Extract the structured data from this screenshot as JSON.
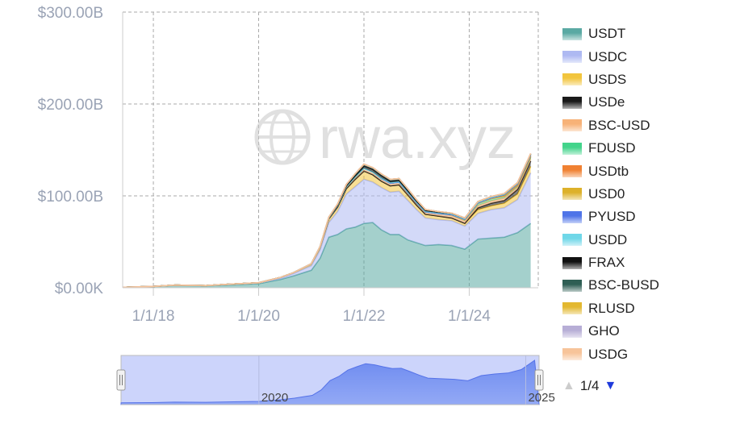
{
  "chart_data": {
    "type": "area",
    "stacked": true,
    "watermark": "rwa.xyz",
    "x_ticks": [
      "1/1/18",
      "1/1/20",
      "1/1/22",
      "1/1/24"
    ],
    "y_ticks": [
      "$0.00K",
      "$100.00B",
      "$200.00B",
      "$300.00B"
    ],
    "ylim": [
      0,
      300
    ],
    "xlim": [
      "2017-06",
      "2025-04"
    ],
    "grid": true,
    "legend_position": "right",
    "x": [
      "2017-06",
      "2018-01",
      "2018-06",
      "2019-01",
      "2019-06",
      "2020-01",
      "2020-06",
      "2020-09",
      "2021-01",
      "2021-03",
      "2021-05",
      "2021-07",
      "2021-09",
      "2021-11",
      "2022-01",
      "2022-03",
      "2022-05",
      "2022-07",
      "2022-09",
      "2022-11",
      "2023-01",
      "2023-03",
      "2023-06",
      "2023-09",
      "2023-12",
      "2024-03",
      "2024-06",
      "2024-09",
      "2024-12",
      "2025-03"
    ],
    "series": [
      {
        "name": "USDT",
        "color": "#5aa9a3",
        "values": [
          0.5,
          1.5,
          2.5,
          2,
          3,
          4.5,
          9,
          13,
          19,
          32,
          55,
          58,
          64,
          66,
          70,
          71,
          63,
          58,
          58,
          52,
          49,
          46,
          47,
          46,
          42,
          53,
          54,
          55,
          60,
          70
        ]
      },
      {
        "name": "USDC",
        "color": "#aeb9f2",
        "values": [
          0,
          0,
          0.3,
          0.3,
          0.5,
          0.6,
          1.5,
          2.5,
          5,
          9,
          16,
          25,
          38,
          44,
          48,
          44,
          46,
          46,
          47,
          43,
          36,
          30,
          27,
          27,
          25,
          28,
          31,
          32,
          36,
          55
        ]
      },
      {
        "name": "USDS",
        "color": "#f2c53d",
        "values": [
          0,
          0,
          0.1,
          0.1,
          0.3,
          0.3,
          0.8,
          1,
          2,
          3,
          4,
          5,
          6,
          8,
          9,
          8,
          7,
          7,
          7,
          6,
          5,
          4,
          4,
          3,
          3,
          4,
          4,
          5,
          6,
          7
        ]
      },
      {
        "name": "USDe",
        "color": "#1a1a1a",
        "values": [
          0,
          0,
          0,
          0,
          0,
          0,
          0,
          0,
          0,
          0,
          0,
          0,
          0,
          0,
          0,
          0,
          0,
          0,
          0,
          0,
          0,
          0,
          0,
          0,
          0.2,
          2,
          3,
          3,
          5,
          6
        ]
      },
      {
        "name": "BSC-USD",
        "color": "#f7b278",
        "values": [
          0,
          0,
          0,
          0,
          0,
          0,
          0,
          0,
          0,
          0.5,
          1,
          1.5,
          2,
          2.5,
          3,
          3,
          2.8,
          2.8,
          2.8,
          2.6,
          2.5,
          2.5,
          2.5,
          2.5,
          2.5,
          2.5,
          2.5,
          2.5,
          2.5,
          2.5
        ]
      },
      {
        "name": "FDUSD",
        "color": "#43d48b",
        "values": [
          0,
          0,
          0,
          0,
          0,
          0,
          0,
          0,
          0,
          0,
          0,
          0,
          0,
          0,
          0,
          0,
          0,
          0,
          0,
          0,
          0,
          0,
          0.2,
          0.8,
          1.5,
          2.5,
          2.5,
          2.2,
          1.8,
          1.5
        ]
      },
      {
        "name": "USDtb",
        "color": "#f08132",
        "values": [
          0,
          0,
          0,
          0,
          0,
          0,
          0,
          0,
          0,
          0,
          0,
          0,
          0,
          0,
          0,
          0,
          0,
          0,
          0,
          0,
          0,
          0,
          0,
          0,
          0,
          0,
          0,
          0,
          0.2,
          1
        ]
      },
      {
        "name": "USD0",
        "color": "#ddb12a",
        "values": [
          0,
          0,
          0,
          0,
          0,
          0,
          0,
          0,
          0,
          0,
          0,
          0,
          0,
          0,
          0,
          0,
          0,
          0,
          0,
          0,
          0,
          0,
          0,
          0,
          0,
          0,
          0.3,
          0.7,
          1,
          1
        ]
      },
      {
        "name": "PYUSD",
        "color": "#4f74e8",
        "values": [
          0,
          0,
          0,
          0,
          0,
          0,
          0,
          0,
          0,
          0,
          0,
          0,
          0,
          0,
          0,
          0,
          0,
          0,
          0,
          0,
          0,
          0,
          0,
          0.2,
          0.3,
          0.4,
          0.5,
          0.7,
          0.5,
          0.5
        ]
      },
      {
        "name": "USDD",
        "color": "#6fd7e8",
        "values": [
          0,
          0,
          0,
          0,
          0,
          0,
          0,
          0,
          0,
          0,
          0,
          0,
          0,
          0,
          0,
          0,
          0.5,
          0.7,
          0.7,
          0.7,
          0.7,
          0.7,
          0.7,
          0.7,
          0.7,
          0.7,
          0.7,
          0.7,
          0.7,
          0.7
        ]
      },
      {
        "name": "FRAX",
        "color": "#111111",
        "values": [
          0,
          0,
          0,
          0,
          0,
          0,
          0,
          0,
          0.1,
          0.2,
          0.3,
          0.6,
          1,
          1.5,
          2.5,
          2.8,
          2.5,
          1.5,
          1.3,
          1.2,
          1,
          1,
          1,
          0.8,
          0.7,
          0.7,
          0.7,
          0.6,
          0.5,
          0.5
        ]
      },
      {
        "name": "BSC-BUSD",
        "color": "#2f5e54",
        "values": [
          0,
          0,
          0,
          0,
          0,
          0,
          0,
          0,
          0,
          0,
          0.5,
          1,
          1.5,
          2,
          2,
          2,
          2,
          2,
          2,
          2,
          1.5,
          1,
          0.5,
          0.2,
          0.1,
          0,
          0,
          0,
          0,
          0
        ]
      },
      {
        "name": "RLUSD",
        "color": "#e3b830",
        "values": [
          0,
          0,
          0,
          0,
          0,
          0,
          0,
          0,
          0,
          0,
          0,
          0,
          0,
          0,
          0,
          0,
          0,
          0,
          0,
          0,
          0,
          0,
          0,
          0,
          0,
          0,
          0,
          0,
          0.1,
          0.2
        ]
      },
      {
        "name": "GHO",
        "color": "#b7aed6",
        "values": [
          0,
          0,
          0,
          0,
          0,
          0,
          0,
          0,
          0,
          0,
          0,
          0,
          0,
          0,
          0,
          0,
          0,
          0,
          0,
          0,
          0,
          0,
          0,
          0,
          0,
          0.1,
          0.1,
          0.2,
          0.2,
          0.2
        ]
      },
      {
        "name": "USDG",
        "color": "#f7c49a",
        "values": [
          0,
          0,
          0,
          0,
          0,
          0,
          0,
          0,
          0,
          0,
          0,
          0,
          0,
          0,
          0,
          0,
          0,
          0,
          0,
          0,
          0,
          0,
          0,
          0,
          0,
          0,
          0,
          0,
          0,
          0.1
        ]
      }
    ],
    "navigator": {
      "labels": [
        "2020",
        "2025"
      ],
      "range": [
        "2017-06",
        "2025-04"
      ]
    }
  },
  "legend_pager": {
    "text": "1/4",
    "up_arrow": "▲",
    "down_arrow": "▼",
    "up_color": "#cccccc",
    "down_color": "#1f3bdb"
  }
}
